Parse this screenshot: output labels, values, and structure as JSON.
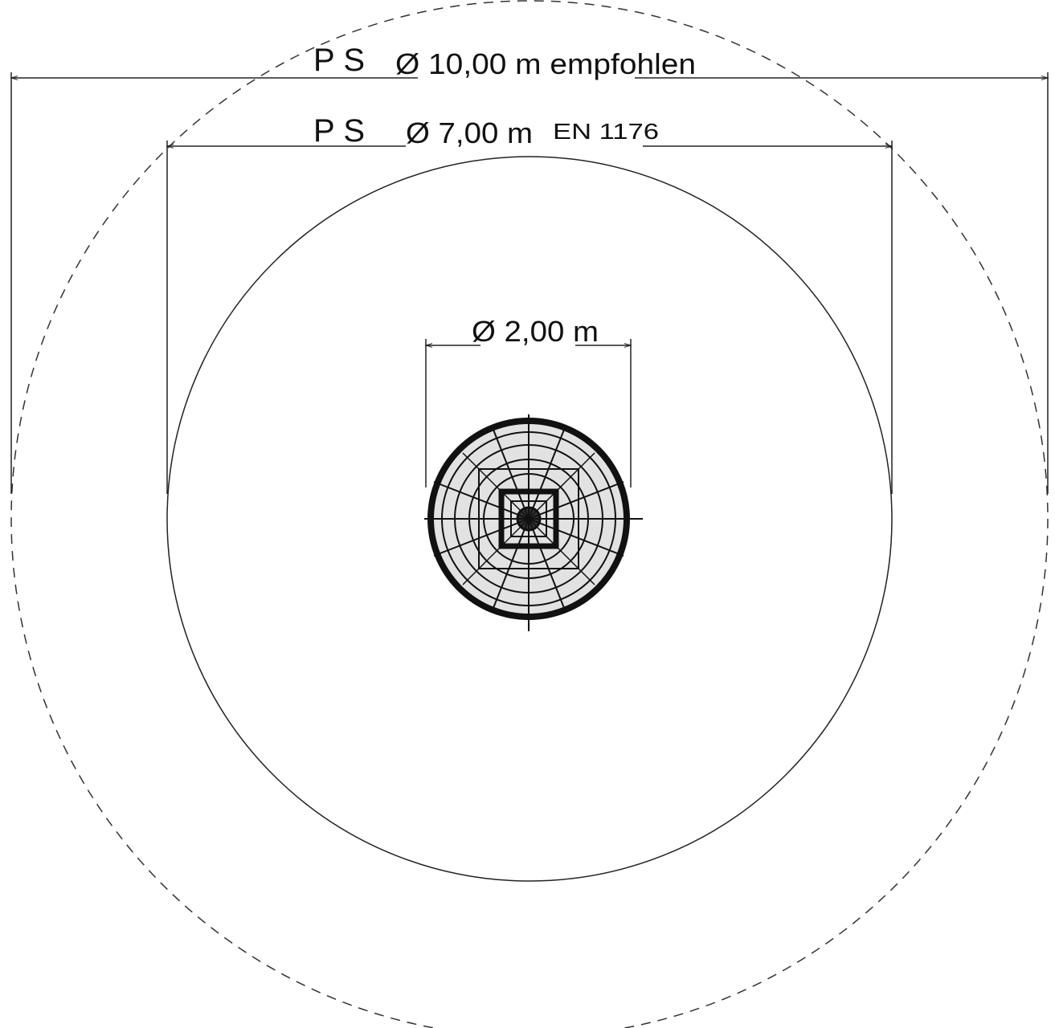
{
  "dimensions": [
    {
      "prefix": "PS",
      "label": "Ø 10,00 m empfohlen"
    },
    {
      "prefix": "PS",
      "label": "Ø 7,00 m",
      "standard": "EN 1176"
    },
    {
      "label": "Ø 2,00 m"
    }
  ]
}
